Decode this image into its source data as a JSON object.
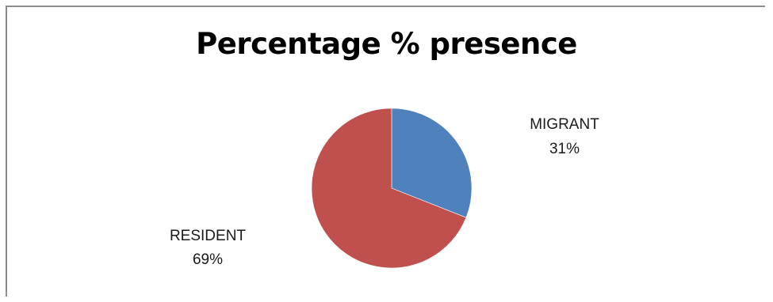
{
  "chart_data": {
    "type": "pie",
    "title": "Percentage % presence",
    "slices": [
      {
        "label": "MIGRANT",
        "value": 31,
        "value_label": "31%",
        "color": "#4f81bd"
      },
      {
        "label": "RESIDENT",
        "value": 69,
        "value_label": "69%",
        "color": "#c0504d"
      }
    ],
    "start_angle_deg": 0,
    "direction": "clockwise",
    "legend": "none"
  }
}
